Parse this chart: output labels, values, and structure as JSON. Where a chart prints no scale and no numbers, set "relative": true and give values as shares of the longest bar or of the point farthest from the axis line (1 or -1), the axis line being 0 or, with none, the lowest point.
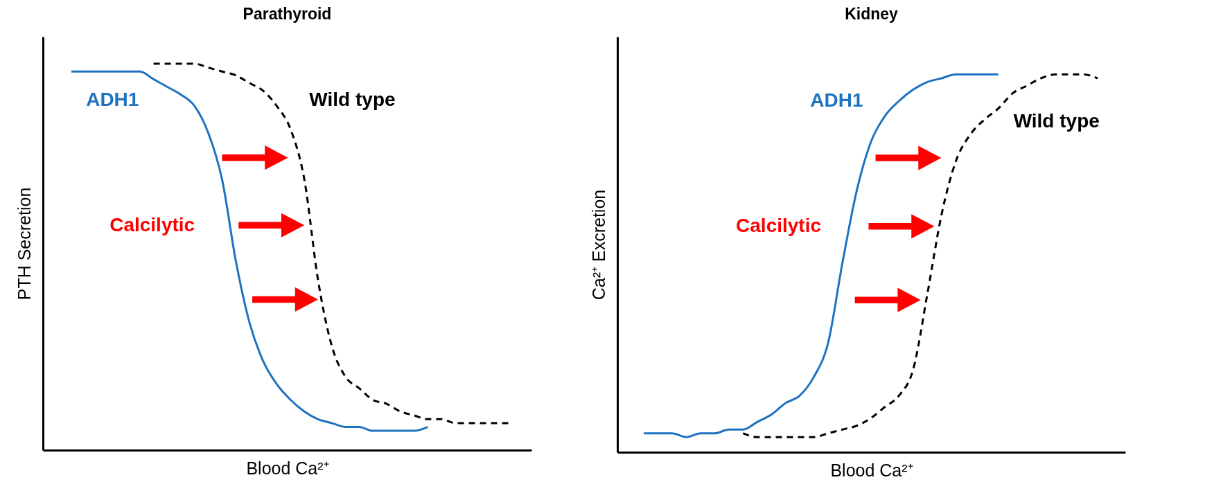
{
  "chart_data": [
    {
      "type": "line",
      "title": "Parathyroid",
      "xlabel": "Blood Ca²⁺",
      "ylabel": "PTH Secretion",
      "relative": true,
      "legend": false,
      "annotations": [
        "Calcilytic"
      ],
      "categories": [
        null,
        null,
        null,
        null,
        null,
        null,
        null,
        null,
        null,
        null,
        null,
        null,
        null,
        null,
        null,
        null,
        null,
        null,
        null,
        null,
        null,
        null,
        null,
        null,
        null,
        null,
        null,
        null,
        null,
        null,
        null,
        null,
        null
      ],
      "series": [
        {
          "name": "ADH1",
          "color": "#1f72c0",
          "line_style": "solid",
          "values": [
            0.98,
            0.98,
            0.98,
            0.98,
            0.98,
            0.98,
            0.96,
            0.94,
            0.92,
            0.89,
            0.82,
            0.7,
            0.49,
            0.33,
            0.23,
            0.17,
            0.13,
            0.1,
            0.08,
            0.07,
            0.06,
            0.06,
            0.05,
            0.05,
            0.05,
            0.05,
            0.06,
            null,
            null,
            null,
            null,
            null,
            null
          ]
        },
        {
          "name": "Wild type",
          "color": "#000000",
          "line_style": "dashed",
          "values": [
            null,
            null,
            null,
            null,
            null,
            null,
            1.0,
            1.0,
            1.0,
            1.0,
            0.99,
            0.98,
            0.97,
            0.95,
            0.93,
            0.89,
            0.83,
            0.7,
            0.44,
            0.27,
            0.19,
            0.16,
            0.13,
            0.12,
            0.1,
            0.09,
            0.08,
            0.08,
            0.07,
            0.07,
            0.07,
            0.07,
            0.07
          ]
        }
      ]
    },
    {
      "type": "line",
      "title": "Kidney",
      "xlabel": "Blood Ca²⁺",
      "ylabel": "Ca²⁺ Excretion",
      "relative": true,
      "legend": false,
      "annotations": [
        "Calcilytic"
      ],
      "categories": [
        null,
        null,
        null,
        null,
        null,
        null,
        null,
        null,
        null,
        null,
        null,
        null,
        null,
        null,
        null,
        null,
        null,
        null,
        null,
        null,
        null,
        null,
        null,
        null,
        null,
        null,
        null,
        null,
        null,
        null,
        null,
        null,
        null
      ],
      "series": [
        {
          "name": "ADH1",
          "color": "#1f72c0",
          "line_style": "solid",
          "values": [
            0.05,
            0.05,
            0.05,
            0.04,
            0.05,
            0.05,
            0.06,
            0.06,
            0.08,
            0.1,
            0.13,
            0.15,
            0.2,
            0.29,
            0.5,
            0.69,
            0.82,
            0.89,
            0.93,
            0.96,
            0.98,
            0.99,
            1.0,
            1.0,
            1.0,
            1.0,
            null,
            null,
            null,
            null,
            null,
            null,
            null
          ]
        },
        {
          "name": "Wild type",
          "color": "#000000",
          "line_style": "dashed",
          "values": [
            null,
            null,
            null,
            null,
            null,
            null,
            null,
            0.05,
            0.04,
            0.04,
            0.04,
            0.04,
            0.04,
            0.05,
            0.06,
            0.07,
            0.09,
            0.12,
            0.15,
            0.22,
            0.42,
            0.63,
            0.77,
            0.84,
            0.88,
            0.91,
            0.95,
            0.97,
            0.99,
            1.0,
            1.0,
            1.0,
            0.99
          ]
        }
      ]
    }
  ]
}
